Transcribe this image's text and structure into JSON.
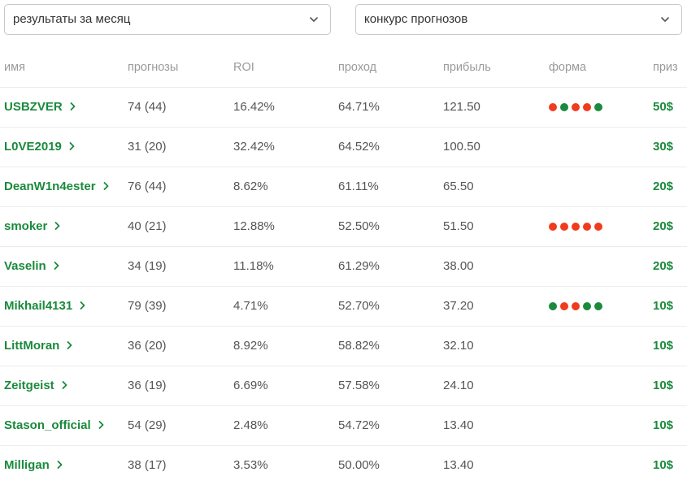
{
  "filters": {
    "period": "результаты за месяц",
    "contest": "конкурс прогнозов"
  },
  "columns": {
    "name": "имя",
    "forecasts": "прогнозы",
    "roi": "ROI",
    "pass": "проход",
    "profit": "прибыль",
    "form": "форма",
    "prize": "приз"
  },
  "colors": {
    "win": "#1a8a3c",
    "loss": "#f03c1e"
  },
  "rows": [
    {
      "name": "USBZVER",
      "forecasts": "74 (44)",
      "roi": "16.42%",
      "pass": "64.71%",
      "profit": "121.50",
      "form": [
        "loss",
        "win",
        "loss",
        "loss",
        "win"
      ],
      "prize": "50$"
    },
    {
      "name": "L0VE2019",
      "forecasts": "31 (20)",
      "roi": "32.42%",
      "pass": "64.52%",
      "profit": "100.50",
      "form": [],
      "prize": "30$"
    },
    {
      "name": "DeanW1n4ester",
      "forecasts": "76 (44)",
      "roi": "8.62%",
      "pass": "61.11%",
      "profit": "65.50",
      "form": [],
      "prize": "20$"
    },
    {
      "name": "smoker",
      "forecasts": "40 (21)",
      "roi": "12.88%",
      "pass": "52.50%",
      "profit": "51.50",
      "form": [
        "loss",
        "loss",
        "loss",
        "loss",
        "loss"
      ],
      "prize": "20$"
    },
    {
      "name": "Vaselin",
      "forecasts": "34 (19)",
      "roi": "11.18%",
      "pass": "61.29%",
      "profit": "38.00",
      "form": [],
      "prize": "20$"
    },
    {
      "name": "Mikhail4131",
      "forecasts": "79 (39)",
      "roi": "4.71%",
      "pass": "52.70%",
      "profit": "37.20",
      "form": [
        "win",
        "loss",
        "loss",
        "win",
        "win"
      ],
      "prize": "10$"
    },
    {
      "name": "LittMoran",
      "forecasts": "36 (20)",
      "roi": "8.92%",
      "pass": "58.82%",
      "profit": "32.10",
      "form": [],
      "prize": "10$"
    },
    {
      "name": "Zeitgeist",
      "forecasts": "36 (19)",
      "roi": "6.69%",
      "pass": "57.58%",
      "profit": "24.10",
      "form": [],
      "prize": "10$"
    },
    {
      "name": "Stason_official",
      "forecasts": "54 (29)",
      "roi": "2.48%",
      "pass": "54.72%",
      "profit": "13.40",
      "form": [],
      "prize": "10$"
    },
    {
      "name": "Milligan",
      "forecasts": "38 (17)",
      "roi": "3.53%",
      "pass": "50.00%",
      "profit": "13.40",
      "form": [],
      "prize": "10$"
    }
  ]
}
